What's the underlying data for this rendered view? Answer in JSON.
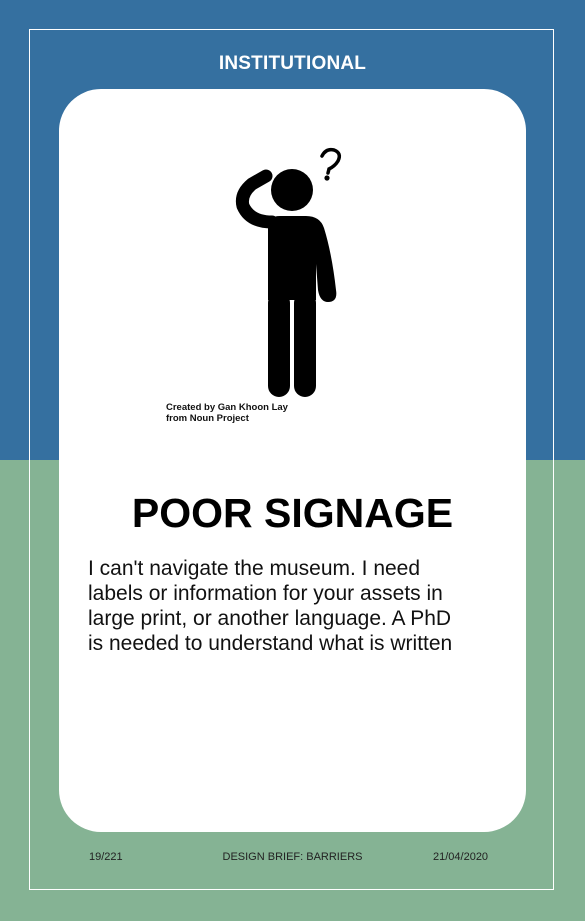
{
  "category": "INSTITUTIONAL",
  "icon": "confused-person-icon",
  "credit": {
    "line1": "Created by Gan Khoon Lay",
    "line2": "from Noun Project"
  },
  "title": "POOR SIGNAGE",
  "description": {
    "line1": "I can't navigate the museum. I need",
    "line2": "labels or information for your assets in",
    "line3": "large print, or another language. A PhD",
    "line4": "is needed to understand what is written"
  },
  "footer": {
    "card_number": "19/221",
    "brief": "DESIGN BRIEF: BARRIERS",
    "date": "21/04/2020"
  },
  "colors": {
    "top_band": "#3570a0",
    "bottom_band": "#85b394",
    "card": "#ffffff"
  }
}
